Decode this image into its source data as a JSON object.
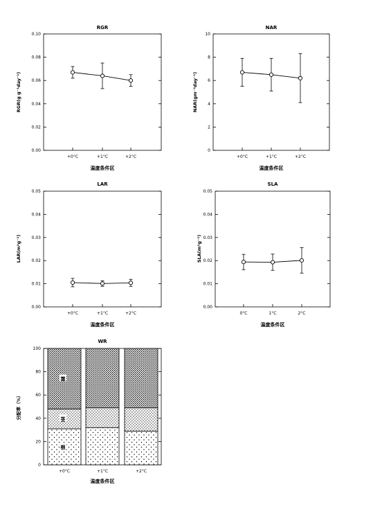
{
  "chart_data": [
    {
      "type": "line",
      "title": "RGR",
      "xlabel": "温度条件区",
      "ylabel": "RGR(g g⁻¹day⁻¹)",
      "categories": [
        "+0°C",
        "+1°C",
        "+2°C"
      ],
      "values": [
        0.067,
        0.064,
        0.06
      ],
      "error": [
        0.005,
        0.011,
        0.005
      ],
      "ylim": [
        0,
        0.1
      ],
      "yticks": [
        "0.00",
        "0.02",
        "0.04",
        "0.06",
        "0.08",
        "0.10"
      ],
      "grid": false
    },
    {
      "type": "line",
      "title": "NAR",
      "xlabel": "温度条件区",
      "ylabel": "NAR(gm⁻²day⁻¹)",
      "categories": [
        "+0°C",
        "+1°C",
        "+2°C"
      ],
      "values": [
        6.7,
        6.5,
        6.2
      ],
      "error": [
        1.2,
        1.4,
        2.1
      ],
      "ylim": [
        0,
        10
      ],
      "yticks": [
        "0",
        "2",
        "4",
        "6",
        "8",
        "10"
      ],
      "grid": false
    },
    {
      "type": "line",
      "title": "LAR",
      "xlabel": "温度条件区",
      "ylabel": "LAR(m²g⁻¹)",
      "categories": [
        "+0°C",
        "+1°C",
        "+2°C"
      ],
      "values": [
        0.0105,
        0.0101,
        0.0104
      ],
      "error": [
        0.0018,
        0.0012,
        0.0015
      ],
      "ylim": [
        0,
        0.05
      ],
      "yticks": [
        "0.00",
        "0.01",
        "0.02",
        "0.03",
        "0.04",
        "0.05"
      ],
      "grid": false
    },
    {
      "type": "line",
      "title": "SLA",
      "xlabel": "温度条件区",
      "ylabel": "SLA(m²g⁻¹)",
      "categories": [
        "0°C",
        "1°C",
        "2°C"
      ],
      "values": [
        0.0194,
        0.0193,
        0.0201
      ],
      "error": [
        0.0033,
        0.0035,
        0.0055
      ],
      "ylim": [
        0,
        0.05
      ],
      "yticks": [
        "0.00",
        "0.01",
        "0.02",
        "0.03",
        "0.04",
        "0.05"
      ],
      "grid": false
    },
    {
      "type": "bar",
      "stacked": true,
      "title": "WR",
      "xlabel": "温度条件区",
      "ylabel": "分配率（%）",
      "categories": [
        "+0°C",
        "+1°C",
        "+2°C"
      ],
      "series": [
        {
          "name": "根",
          "values": [
            31,
            32,
            29
          ]
        },
        {
          "name": "茎",
          "values": [
            17,
            17,
            20
          ]
        },
        {
          "name": "葉",
          "values": [
            52,
            51,
            51
          ]
        }
      ],
      "ylim": [
        0,
        100
      ],
      "yticks": [
        "0",
        "20",
        "40",
        "60",
        "80",
        "100"
      ],
      "grid": false
    }
  ]
}
